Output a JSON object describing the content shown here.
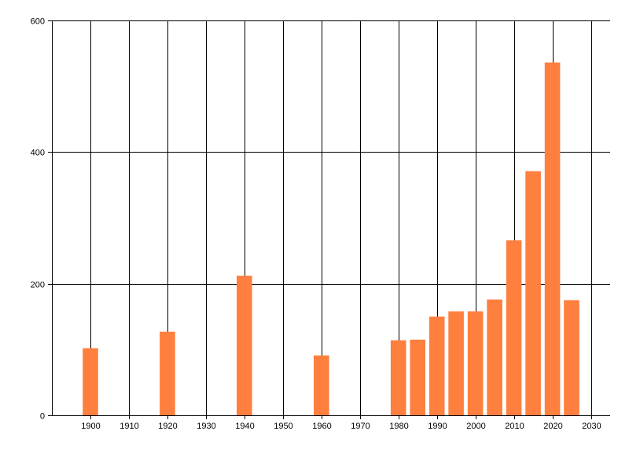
{
  "chart_data": {
    "type": "bar",
    "title": "",
    "xlabel": "",
    "ylabel": "",
    "x": [
      1900,
      1920,
      1940,
      1960,
      1980,
      1985,
      1990,
      1995,
      2000,
      2005,
      2010,
      2015,
      2020,
      2025
    ],
    "values": [
      102,
      127,
      212,
      91,
      114,
      115,
      150,
      158,
      158,
      176,
      266,
      371,
      536,
      175
    ],
    "xlim": [
      1890,
      2035
    ],
    "ylim": [
      0,
      600
    ],
    "x_ticks": [
      1900,
      1910,
      1920,
      1930,
      1940,
      1950,
      1960,
      1970,
      1980,
      1990,
      2000,
      2010,
      2020,
      2030
    ],
    "y_ticks": [
      0,
      200,
      400,
      600
    ],
    "bar_width_years": 4,
    "grid": true,
    "colors": {
      "bar": "#ff7f3f",
      "grid": "#000000",
      "axis": "#000000"
    }
  }
}
